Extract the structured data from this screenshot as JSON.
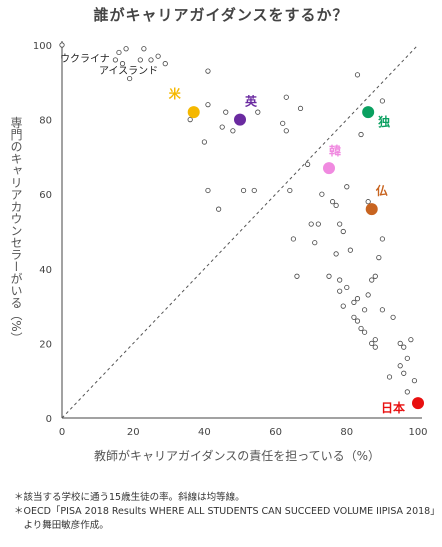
{
  "chart_data": {
    "type": "scatter",
    "title": "誰がキャリアガイダンスをするか？",
    "xlabel": "教師がキャリアガイダンスの責任を担っている（%）",
    "ylabel": "専門のキャリアカウンセラーがいる（%）",
    "xlim": [
      0,
      100
    ],
    "ylim": [
      0,
      100
    ],
    "xticks": [
      "0",
      "20",
      "40",
      "60",
      "80",
      "100"
    ],
    "yticks": [
      "0",
      "20",
      "40",
      "60",
      "80",
      "100"
    ],
    "grid": false,
    "diagonal": "dashed equality line",
    "text_annotations": [
      {
        "label": "ウクライナ",
        "x": 0,
        "y": 100
      },
      {
        "label": "アイスランド",
        "x": 16,
        "y": 93
      }
    ],
    "background_points": [
      [
        0,
        100
      ],
      [
        15,
        96
      ],
      [
        16,
        98
      ],
      [
        17,
        95
      ],
      [
        18,
        99
      ],
      [
        19,
        91
      ],
      [
        22,
        96
      ],
      [
        23,
        99
      ],
      [
        25,
        96
      ],
      [
        27,
        97
      ],
      [
        29,
        95
      ],
      [
        36,
        80
      ],
      [
        40,
        74
      ],
      [
        41,
        84
      ],
      [
        41,
        93
      ],
      [
        41,
        61
      ],
      [
        44,
        56
      ],
      [
        45,
        78
      ],
      [
        46,
        82
      ],
      [
        48,
        77
      ],
      [
        51,
        61
      ],
      [
        54,
        61
      ],
      [
        55,
        82
      ],
      [
        62,
        79
      ],
      [
        63,
        77
      ],
      [
        63,
        86
      ],
      [
        64,
        61
      ],
      [
        65,
        48
      ],
      [
        66,
        38
      ],
      [
        67,
        83
      ],
      [
        69,
        68
      ],
      [
        70,
        52
      ],
      [
        71,
        47
      ],
      [
        72,
        52
      ],
      [
        73,
        60
      ],
      [
        75,
        38
      ],
      [
        76,
        58
      ],
      [
        77,
        44
      ],
      [
        77,
        57
      ],
      [
        78,
        34
      ],
      [
        78,
        37
      ],
      [
        78,
        52
      ],
      [
        79,
        30
      ],
      [
        79,
        50
      ],
      [
        80,
        35
      ],
      [
        80,
        62
      ],
      [
        81,
        45
      ],
      [
        82,
        27
      ],
      [
        82,
        31
      ],
      [
        83,
        26
      ],
      [
        83,
        32
      ],
      [
        83,
        92
      ],
      [
        84,
        24
      ],
      [
        84,
        76
      ],
      [
        85,
        23
      ],
      [
        85,
        29
      ],
      [
        86,
        33
      ],
      [
        86,
        58
      ],
      [
        87,
        37
      ],
      [
        87,
        20
      ],
      [
        88,
        19
      ],
      [
        88,
        38
      ],
      [
        88,
        21
      ],
      [
        89,
        43
      ],
      [
        90,
        29
      ],
      [
        90,
        48
      ],
      [
        90,
        85
      ],
      [
        92,
        11
      ],
      [
        93,
        27
      ],
      [
        95,
        20
      ],
      [
        95,
        14
      ],
      [
        96,
        12
      ],
      [
        96,
        19
      ],
      [
        97,
        7
      ],
      [
        97,
        16
      ],
      [
        98,
        21
      ],
      [
        99,
        10
      ]
    ],
    "highlighted": [
      {
        "label": "米",
        "x": 37,
        "y": 82,
        "color": "#f5b800"
      },
      {
        "label": "英",
        "x": 50,
        "y": 80,
        "color": "#6a2aa0"
      },
      {
        "label": "独",
        "x": 86,
        "y": 82,
        "color": "#0aa060"
      },
      {
        "label": "韓",
        "x": 75,
        "y": 67,
        "color": "#f08ae0"
      },
      {
        "label": "仏",
        "x": 87,
        "y": 56,
        "color": "#c86420"
      },
      {
        "label": "日本",
        "x": 100,
        "y": 4,
        "color": "#e81010"
      }
    ]
  },
  "notes": [
    "＊該当する学校に通う15歳生徒の率。斜線は均等線。",
    "＊OECD「PISA 2018 Results WHERE ALL STUDENTS CAN SUCCEED VOLUME IIPISA 2018」",
    "　より舞田敏彦作成。"
  ]
}
